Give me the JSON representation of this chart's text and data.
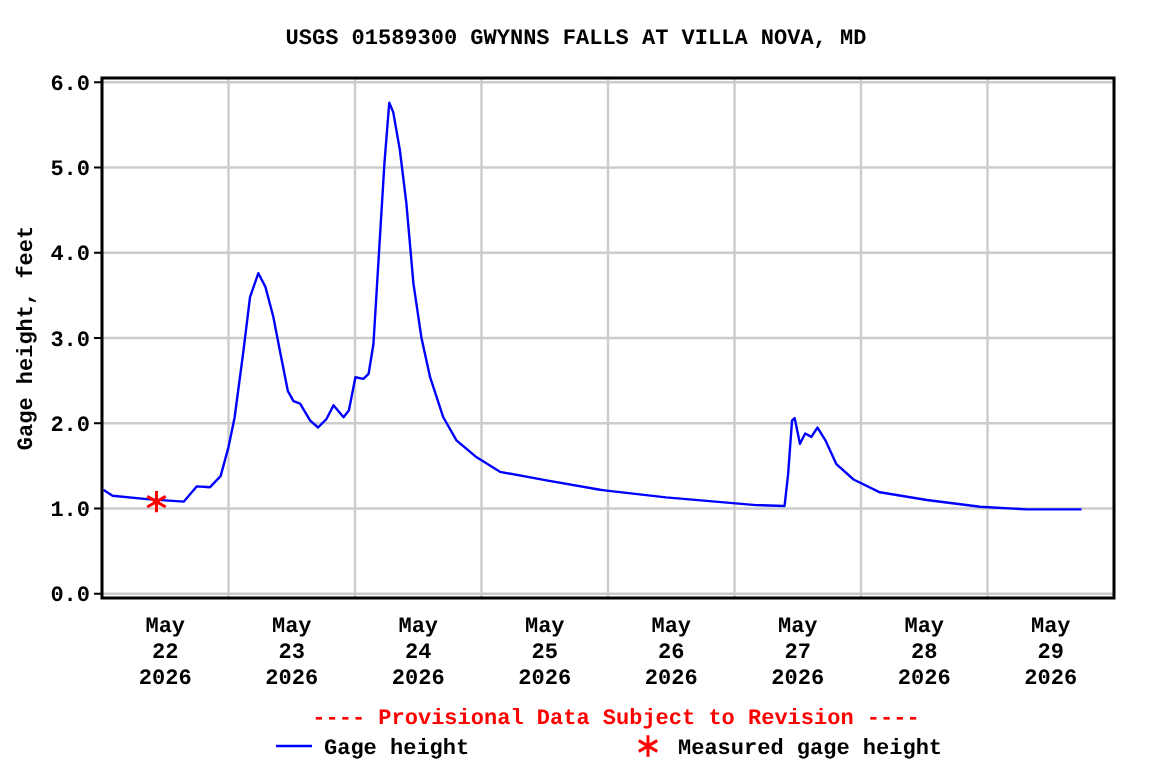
{
  "chart_data": {
    "type": "line",
    "title": "USGS 01589300 GWYNNS FALLS AT VILLA NOVA, MD",
    "ylabel": "Gage height, feet",
    "annotations": [
      "---- Provisional Data Subject to Revision ----"
    ],
    "xlim": [
      "2026-05-22T00:00",
      "2026-05-30T00:00"
    ],
    "xticks": [
      {
        "value": "2026-05-22T00:00",
        "label": null
      },
      {
        "value": "2026-05-22T12:00",
        "label": "May\n22\n2026"
      },
      {
        "value": "2026-05-23T00:00",
        "label": null
      },
      {
        "value": "2026-05-23T12:00",
        "label": "May\n23\n2026"
      },
      {
        "value": "2026-05-24T00:00",
        "label": null
      },
      {
        "value": "2026-05-24T12:00",
        "label": "May\n24\n2026"
      },
      {
        "value": "2026-05-25T00:00",
        "label": null
      },
      {
        "value": "2026-05-25T12:00",
        "label": "May\n25\n2026"
      },
      {
        "value": "2026-05-26T00:00",
        "label": null
      },
      {
        "value": "2026-05-26T12:00",
        "label": "May\n26\n2026"
      },
      {
        "value": "2026-05-27T00:00",
        "label": null
      },
      {
        "value": "2026-05-27T12:00",
        "label": "May\n27\n2026"
      },
      {
        "value": "2026-05-28T00:00",
        "label": null
      },
      {
        "value": "2026-05-28T12:00",
        "label": "May\n28\n2026"
      },
      {
        "value": "2026-05-29T00:00",
        "label": null
      },
      {
        "value": "2026-05-29T12:00",
        "label": "May\n29\n2026"
      },
      {
        "value": "2026-05-30T00:00",
        "label": null
      }
    ],
    "ylim": [
      -0.05,
      6.05
    ],
    "yticks": [
      {
        "value": 0,
        "label": "0.0"
      },
      {
        "value": 1,
        "label": "1.0"
      },
      {
        "value": 2,
        "label": "2.0"
      },
      {
        "value": 3,
        "label": "3.0"
      },
      {
        "value": 4,
        "label": "4.0"
      },
      {
        "value": 5,
        "label": "5.0"
      },
      {
        "value": 6,
        "label": "6.0"
      }
    ],
    "grid": true,
    "legend": "bottom",
    "series": [
      {
        "name": "Gage height",
        "color": "#0000ff",
        "marker": "none",
        "line_style": "solid",
        "x": [
          "2026-05-22T00:15",
          "2026-05-22T02:00",
          "2026-05-22T08:30",
          "2026-05-22T15:30",
          "2026-05-22T18:00",
          "2026-05-22T20:30",
          "2026-05-22T22:30",
          "2026-05-23T00:00",
          "2026-05-23T01:10",
          "2026-05-23T02:50",
          "2026-05-23T04:05",
          "2026-05-23T05:40",
          "2026-05-23T07:00",
          "2026-05-23T08:30",
          "2026-05-23T09:45",
          "2026-05-23T11:15",
          "2026-05-23T12:20",
          "2026-05-23T13:35",
          "2026-05-23T15:30",
          "2026-05-23T17:00",
          "2026-05-23T18:35",
          "2026-05-23T19:55",
          "2026-05-23T21:50",
          "2026-05-23T22:50",
          "2026-05-24T00:05",
          "2026-05-24T01:35",
          "2026-05-24T02:35",
          "2026-05-24T03:30",
          "2026-05-24T04:30",
          "2026-05-24T05:35",
          "2026-05-24T06:30",
          "2026-05-24T07:15",
          "2026-05-24T08:30",
          "2026-05-24T09:45",
          "2026-05-24T11:05",
          "2026-05-24T12:35",
          "2026-05-24T14:15",
          "2026-05-24T16:45",
          "2026-05-24T19:15",
          "2026-05-24T23:05",
          "2026-05-25T03:30",
          "2026-05-25T12:20",
          "2026-05-25T22:30",
          "2026-05-25T23:45",
          "2026-05-26T11:00",
          "2026-05-27T04:05",
          "2026-05-27T09:30",
          "2026-05-27T10:10",
          "2026-05-27T10:55",
          "2026-05-27T11:25",
          "2026-05-27T12:25",
          "2026-05-27T13:25",
          "2026-05-27T14:35",
          "2026-05-27T15:45",
          "2026-05-27T17:15",
          "2026-05-27T19:20",
          "2026-05-27T22:35",
          "2026-05-28T03:35",
          "2026-05-28T12:30",
          "2026-05-28T22:35",
          "2026-05-29T07:25",
          "2026-05-29T17:50"
        ],
        "values": [
          1.22,
          1.15,
          1.11,
          1.08,
          1.26,
          1.25,
          1.38,
          1.72,
          2.07,
          2.85,
          3.48,
          3.76,
          3.6,
          3.25,
          2.85,
          2.38,
          2.26,
          2.23,
          2.03,
          1.95,
          2.05,
          2.21,
          2.07,
          2.15,
          2.54,
          2.52,
          2.58,
          2.93,
          3.95,
          5.05,
          5.76,
          5.65,
          5.21,
          4.58,
          3.64,
          3.01,
          2.54,
          2.07,
          1.8,
          1.6,
          1.43,
          1.33,
          1.22,
          1.21,
          1.13,
          1.04,
          1.03,
          1.4,
          2.03,
          2.06,
          1.76,
          1.88,
          1.84,
          1.95,
          1.8,
          1.52,
          1.34,
          1.19,
          1.1,
          1.02,
          0.99,
          0.99
        ]
      },
      {
        "name": "Measured gage height",
        "type": "scatter",
        "color": "#ff0000",
        "marker": "cross",
        "x": [
          "2026-05-22T10:20"
        ],
        "values": [
          1.08
        ]
      }
    ]
  }
}
